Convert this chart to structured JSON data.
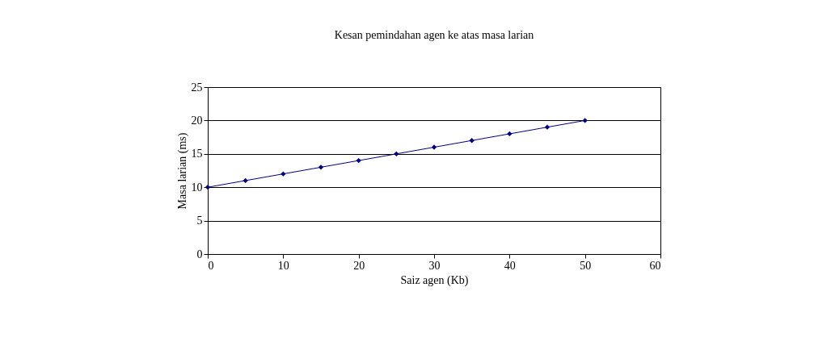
{
  "chart_data": {
    "type": "line",
    "title": "Kesan pemindahan agen ke atas masa larian",
    "xlabel": "Saiz agen (Kb)",
    "ylabel": "Masa larian (ms)",
    "x": [
      0,
      5,
      10,
      15,
      20,
      25,
      30,
      35,
      40,
      45,
      50
    ],
    "series": [
      {
        "color": "#000080",
        "values": [
          10,
          11,
          12,
          13,
          14,
          15,
          16,
          17,
          18,
          19,
          20
        ]
      }
    ],
    "xlim": [
      0,
      60
    ],
    "xticks": [
      0,
      10,
      20,
      30,
      40,
      50,
      60
    ],
    "ylim": [
      0,
      25
    ],
    "yticks": [
      0,
      5,
      10,
      15,
      20,
      25
    ],
    "grid": "y",
    "marker": "diamond",
    "line_style": "solid"
  }
}
